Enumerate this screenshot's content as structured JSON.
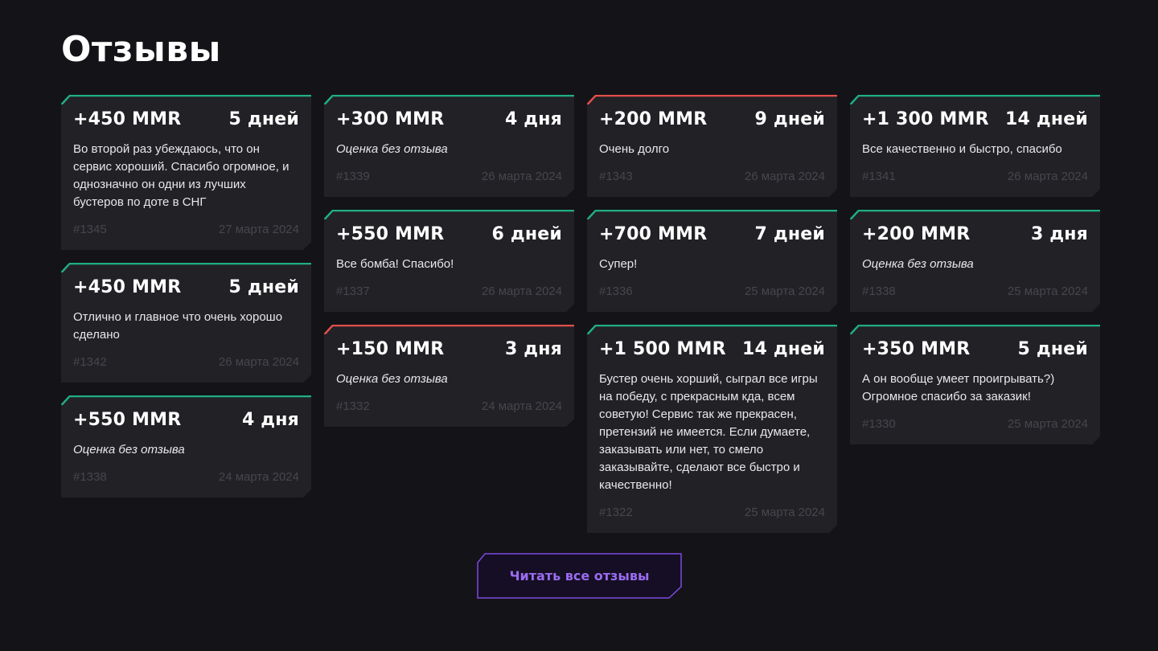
{
  "page": {
    "title": "Отзывы"
  },
  "colors": {
    "positive": "#1fae83",
    "negative": "#e0504a",
    "card_bg": "#222126",
    "button_accent": "#7c4ae0"
  },
  "reviews": [
    {
      "mmr": "+450 MMR",
      "days": "5 дней",
      "text": "Во второй раз убеждаюсь, что он сервис хороший. Спасибо огромное, и однозначно он одни из лучших бустеров по доте в СНГ",
      "no_text": false,
      "id": "#1345",
      "date": "27 марта 2024",
      "status": "positive"
    },
    {
      "mmr": "+450 MMR",
      "days": "5 дней",
      "text": "Отлично и главное что очень хорошо сделано",
      "no_text": false,
      "id": "#1342",
      "date": "26 марта 2024",
      "status": "positive"
    },
    {
      "mmr": "+550 MMR",
      "days": "4 дня",
      "text": "Оценка без отзыва",
      "no_text": true,
      "id": "#1338",
      "date": "24 марта 2024",
      "status": "positive"
    },
    {
      "mmr": "+300 MMR",
      "days": "4 дня",
      "text": "Оценка без отзыва",
      "no_text": true,
      "id": "#1339",
      "date": "26 марта 2024",
      "status": "positive"
    },
    {
      "mmr": "+550 MMR",
      "days": "6 дней",
      "text": "Все бомба! Спасибо!",
      "no_text": false,
      "id": "#1337",
      "date": "26 марта 2024",
      "status": "positive"
    },
    {
      "mmr": "+150 MMR",
      "days": "3 дня",
      "text": "Оценка без отзыва",
      "no_text": true,
      "id": "#1332",
      "date": "24 марта 2024",
      "status": "negative"
    },
    {
      "mmr": "+200 MMR",
      "days": "9 дней",
      "text": "Очень долго",
      "no_text": false,
      "id": "#1343",
      "date": "26 марта 2024",
      "status": "negative"
    },
    {
      "mmr": "+700 MMR",
      "days": "7 дней",
      "text": "Супер!",
      "no_text": false,
      "id": "#1336",
      "date": "25 марта 2024",
      "status": "positive"
    },
    {
      "mmr": "+1 500 MMR",
      "days": "14 дней",
      "text": "Бустер очень хорший, сыграл все игры на победу, с прекрасным кда, всем советую! Сервис так же прекрасен, претензий не имеется. Если думаете, заказывать или нет, то смело заказывайте, сделают все быстро и качественно!",
      "no_text": false,
      "id": "#1322",
      "date": "25 марта 2024",
      "status": "positive"
    },
    {
      "mmr": "+1 300 MMR",
      "days": "14 дней",
      "text": "Все качественно и быстро, спасибо",
      "no_text": false,
      "id": "#1341",
      "date": "26 марта 2024",
      "status": "positive"
    },
    {
      "mmr": "+200 MMR",
      "days": "3 дня",
      "text": "Оценка без отзыва",
      "no_text": true,
      "id": "#1338",
      "date": "25 марта 2024",
      "status": "positive"
    },
    {
      "mmr": "+350 MMR",
      "days": "5 дней",
      "text": "А он вообще умеет проигрывать?) Огромное спасибо за заказик!",
      "no_text": false,
      "id": "#1330",
      "date": "25 марта 2024",
      "status": "positive"
    }
  ],
  "button": {
    "label": "Читать все отзывы"
  }
}
